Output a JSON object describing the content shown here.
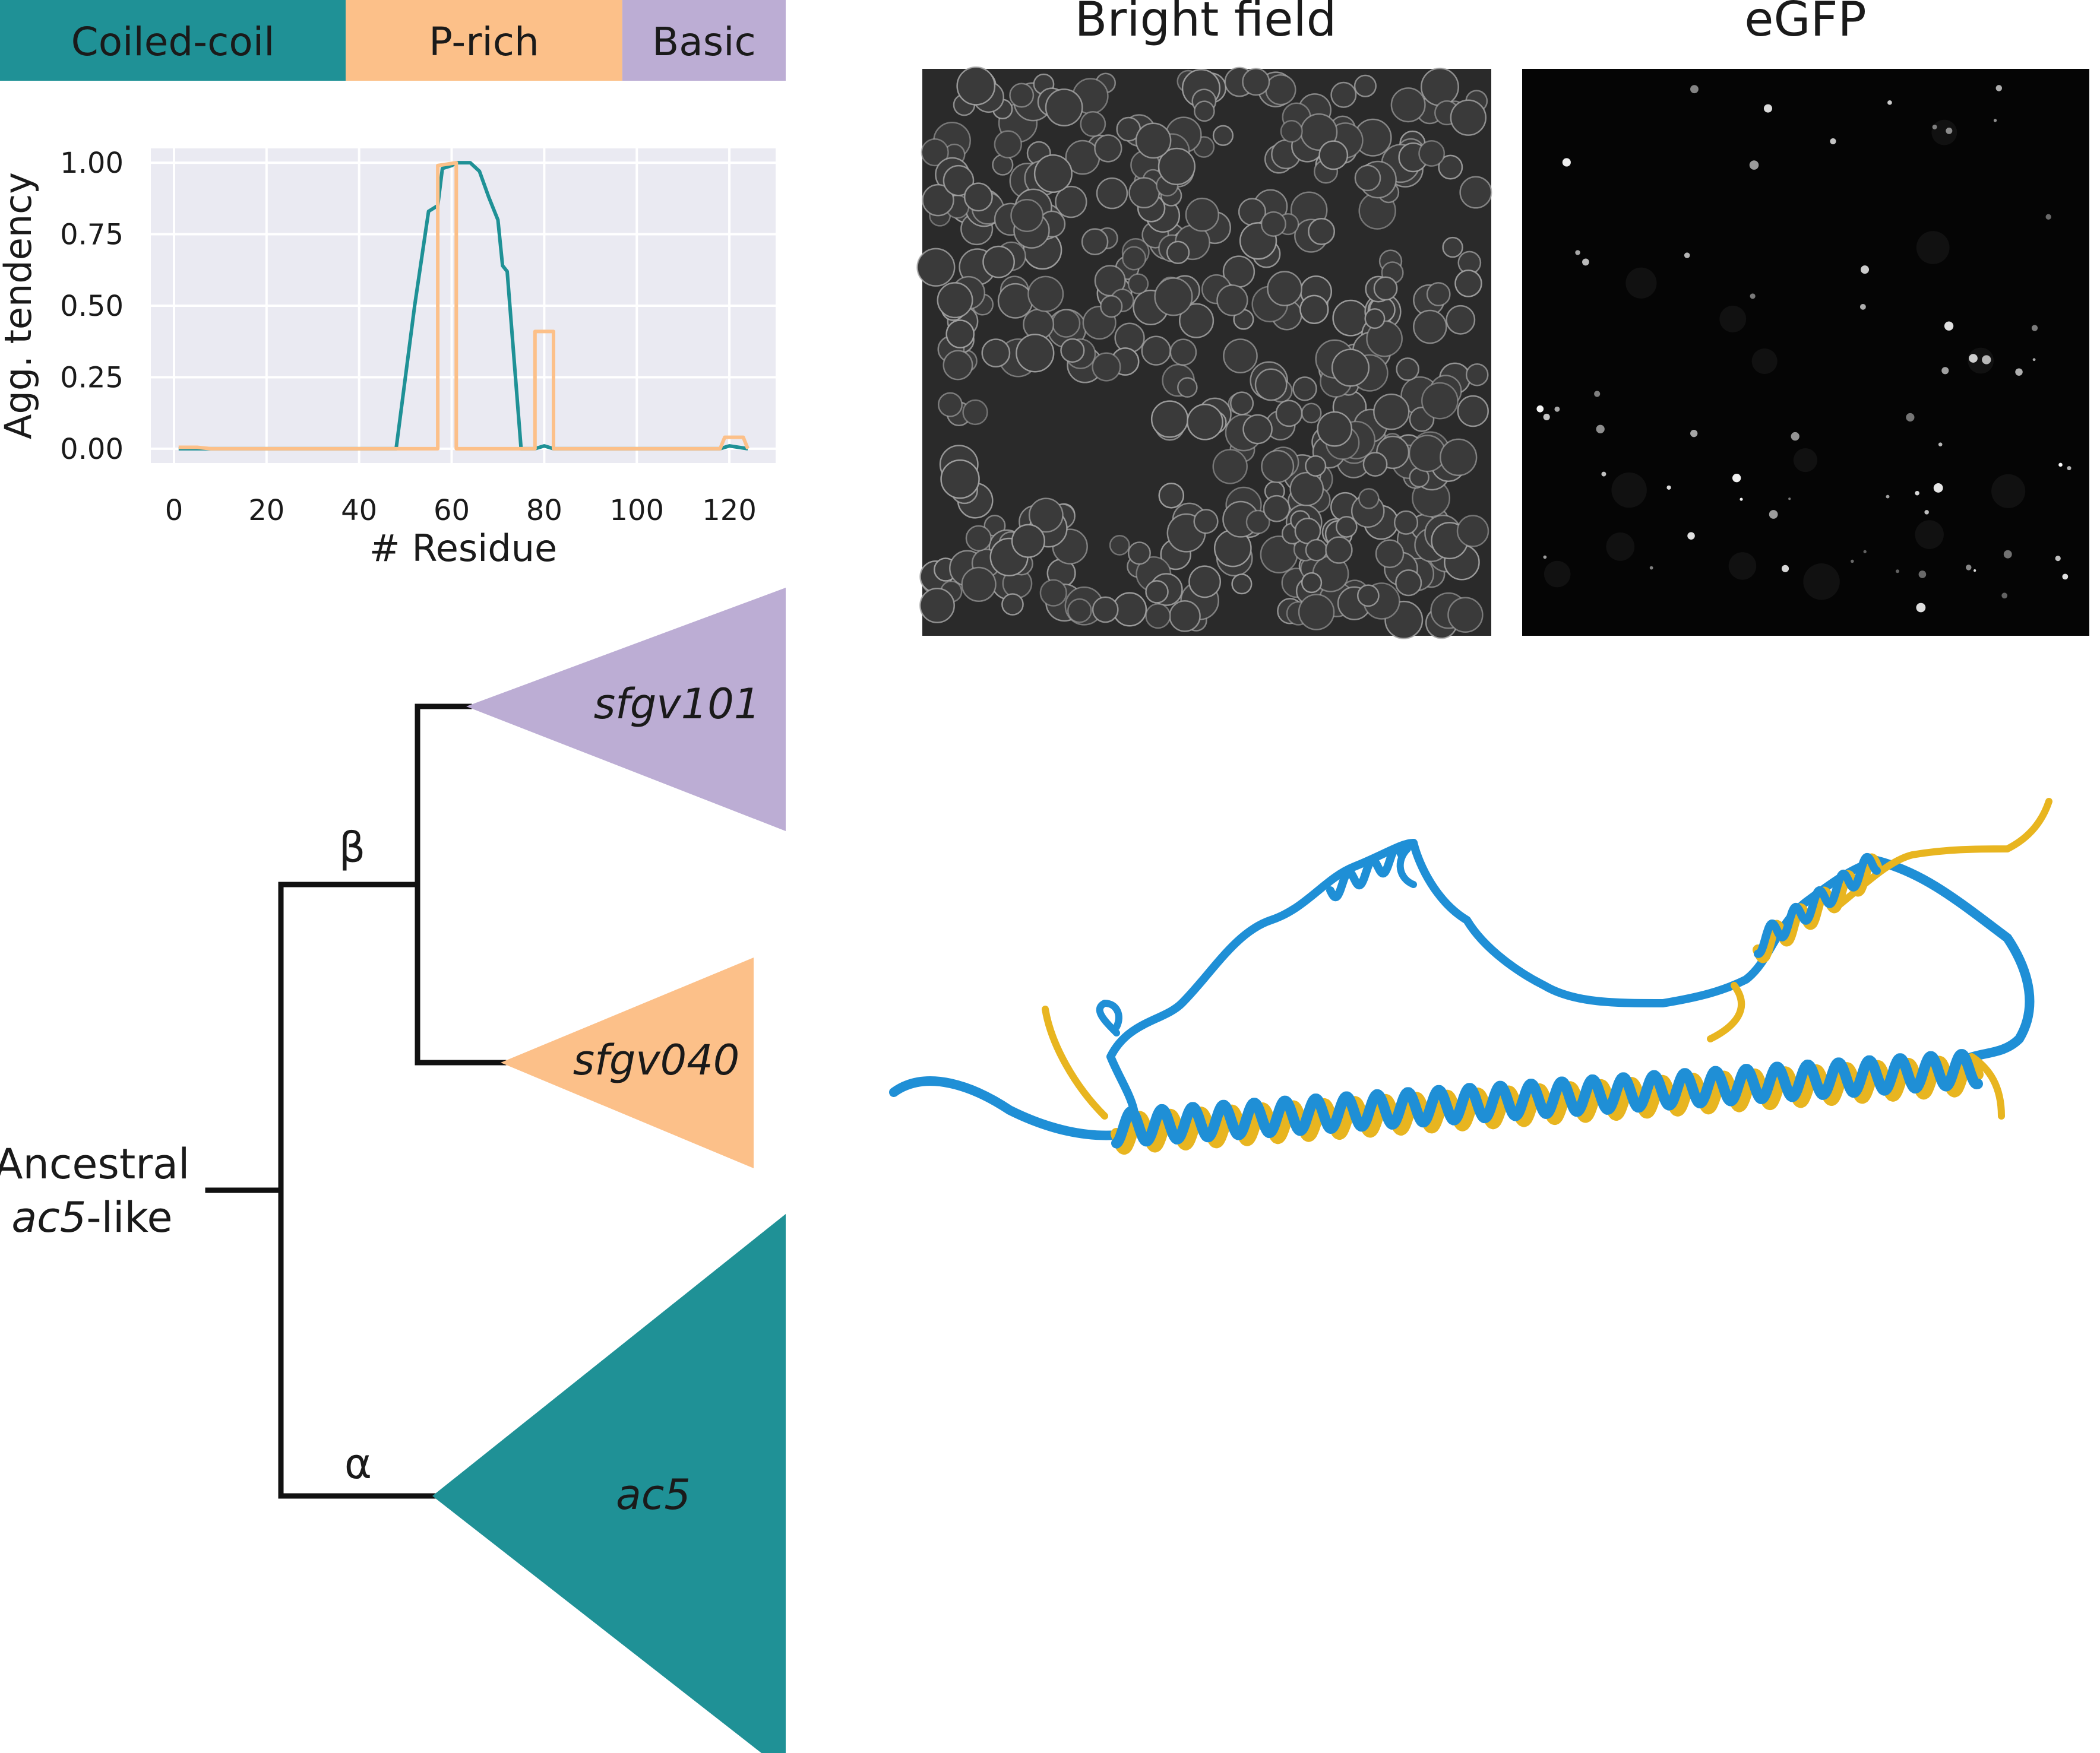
{
  "domains_bar": {
    "segments": [
      {
        "label": "Coiled-coil",
        "color": "#1f9196",
        "start": 0,
        "end": 55
      },
      {
        "label": "P-rich",
        "color": "#fcc089",
        "start": 55,
        "end": 99
      },
      {
        "label": "Basic",
        "color": "#bcadd4",
        "start": 99,
        "end": 125
      }
    ]
  },
  "chart_data": {
    "type": "line",
    "xlabel": "# Residue",
    "ylabel": "Agg. tendency",
    "xlim": [
      -5,
      130
    ],
    "ylim": [
      -0.05,
      1.05
    ],
    "xticks": [
      "0",
      "20",
      "40",
      "60",
      "80",
      "100",
      "120"
    ],
    "yticks": [
      "0.00",
      "0.25",
      "0.50",
      "0.75",
      "1.00"
    ],
    "grid": true,
    "background": "#eaeaf2",
    "series": [
      {
        "color": "#1f9196",
        "points": [
          [
            1,
            0
          ],
          [
            48,
            0
          ],
          [
            52,
            0.5
          ],
          [
            55,
            0.83
          ],
          [
            57,
            0.85
          ],
          [
            58,
            0.98
          ],
          [
            60,
            0.99
          ],
          [
            61,
            1.0
          ],
          [
            64,
            1.0
          ],
          [
            66,
            0.97
          ],
          [
            68,
            0.88
          ],
          [
            70,
            0.8
          ],
          [
            71,
            0.64
          ],
          [
            72,
            0.62
          ],
          [
            75,
            0
          ],
          [
            78,
            0
          ],
          [
            80,
            0.01
          ],
          [
            82,
            0
          ],
          [
            118,
            0
          ],
          [
            120,
            0.01
          ],
          [
            124,
            0
          ]
        ]
      },
      {
        "color": "#fcc089",
        "points": [
          [
            1,
            0.005
          ],
          [
            5,
            0.005
          ],
          [
            8,
            0.0
          ],
          [
            40,
            0.0
          ],
          [
            57,
            0
          ],
          [
            57,
            0.99
          ],
          [
            61,
            1.0
          ],
          [
            61,
            0
          ],
          [
            78,
            0
          ],
          [
            78,
            0.41
          ],
          [
            82,
            0.41
          ],
          [
            82,
            0
          ],
          [
            118,
            0
          ],
          [
            119,
            0.04
          ],
          [
            123,
            0.04
          ],
          [
            124,
            0
          ]
        ]
      }
    ]
  },
  "microscopy": {
    "bright_field_title": "Bright field",
    "egfp_title": "eGFP"
  },
  "tree": {
    "root_label_line1": "Ancestral",
    "root_label_line2_italic": "ac5",
    "root_label_line2_rest": "-like",
    "beta_label": "β",
    "alpha_label": "α",
    "clades": [
      {
        "name": "sfgv101",
        "color": "#bcadd4"
      },
      {
        "name": "sfgv040",
        "color": "#fcc089"
      },
      {
        "name": "ac5",
        "color": "#1f9196"
      }
    ]
  },
  "structure": {
    "colors": {
      "model_a": "#1f8fd6",
      "model_b": "#e8b520"
    }
  }
}
